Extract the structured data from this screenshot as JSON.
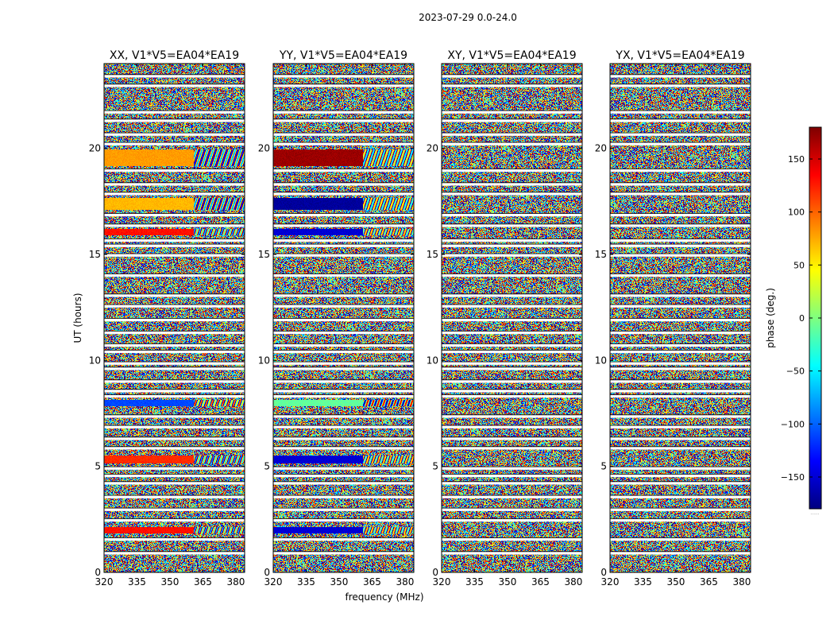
{
  "figure_title": "2023-07-29 0.0-24.0",
  "xlabel": "frequency (MHz)",
  "ylabel": "UT (hours)",
  "colorbar": {
    "label": "phase (deg.)",
    "ticks": [
      -150,
      -100,
      -50,
      0,
      50,
      100,
      150
    ],
    "tick_labels": [
      "−150",
      "−100",
      "−50",
      "0",
      "50",
      "100",
      "150"
    ],
    "range": [
      -180,
      180
    ],
    "colormap": [
      "#00007f",
      "#0000ff",
      "#007fff",
      "#00ffff",
      "#7fff7f",
      "#ffff00",
      "#ff7f00",
      "#ff0000",
      "#7f0000"
    ],
    "footer": "......"
  },
  "chart_data": [
    {
      "type": "heatmap",
      "title": "XX, V1*V5=EA04*EA19",
      "x_range": [
        320,
        384
      ],
      "xticks": [
        320,
        335,
        350,
        365,
        380
      ],
      "y_range": [
        0,
        24
      ],
      "yticks": [
        0,
        5,
        10,
        15,
        20
      ],
      "value": "phase (deg.)",
      "coherent_bands": [
        {
          "t0": 19.15,
          "t1": 19.95,
          "phase": 80
        },
        {
          "t0": 17.1,
          "t1": 17.65,
          "phase": 70
        },
        {
          "t0": 15.9,
          "t1": 16.2,
          "phase": 130
        },
        {
          "t0": 7.85,
          "t1": 8.15,
          "phase": -110
        },
        {
          "t0": 5.15,
          "t1": 5.5,
          "phase": 120
        },
        {
          "t0": 1.85,
          "t1": 2.15,
          "phase": 130
        }
      ]
    },
    {
      "type": "heatmap",
      "title": "YY, V1*V5=EA04*EA19",
      "x_range": [
        320,
        384
      ],
      "xticks": [
        320,
        335,
        350,
        365,
        380
      ],
      "y_range": [
        0,
        24
      ],
      "yticks": [
        0,
        5,
        10,
        15,
        20
      ],
      "value": "phase (deg.)",
      "coherent_bands": [
        {
          "t0": 19.15,
          "t1": 19.95,
          "phase": 170
        },
        {
          "t0": 17.1,
          "t1": 17.65,
          "phase": -170
        },
        {
          "t0": 15.9,
          "t1": 16.2,
          "phase": -150
        },
        {
          "t0": 7.85,
          "t1": 8.15,
          "phase": -10
        },
        {
          "t0": 5.15,
          "t1": 5.5,
          "phase": -150
        },
        {
          "t0": 1.85,
          "t1": 2.15,
          "phase": -150
        }
      ]
    },
    {
      "type": "heatmap",
      "title": "XY, V1*V5=EA04*EA19",
      "x_range": [
        320,
        384
      ],
      "xticks": [
        320,
        335,
        350,
        365,
        380
      ],
      "y_range": [
        0,
        24
      ],
      "yticks": [
        0,
        5,
        10,
        15,
        20
      ],
      "value": "phase (deg.)",
      "coherent_bands": []
    },
    {
      "type": "heatmap",
      "title": "YX, V1*V5=EA04*EA19",
      "x_range": [
        320,
        384
      ],
      "xticks": [
        320,
        335,
        350,
        365,
        380
      ],
      "y_range": [
        0,
        24
      ],
      "yticks": [
        0,
        5,
        10,
        15,
        20
      ],
      "value": "phase (deg.)",
      "coherent_bands": []
    }
  ],
  "flagged_hours": [
    0.9,
    1.55,
    2.45,
    2.95,
    3.55,
    4.2,
    4.55,
    4.9,
    5.85,
    6.3,
    6.85,
    7.35,
    8.3,
    8.55,
    9.0,
    9.6,
    9.85,
    10.4,
    10.7,
    11.3,
    11.9,
    12.55,
    13.05,
    14.0,
    14.95,
    15.4,
    15.65,
    16.35,
    16.85,
    17.85,
    18.3,
    18.95,
    20.2,
    20.65,
    21.3,
    21.7,
    22.95,
    23.4
  ]
}
